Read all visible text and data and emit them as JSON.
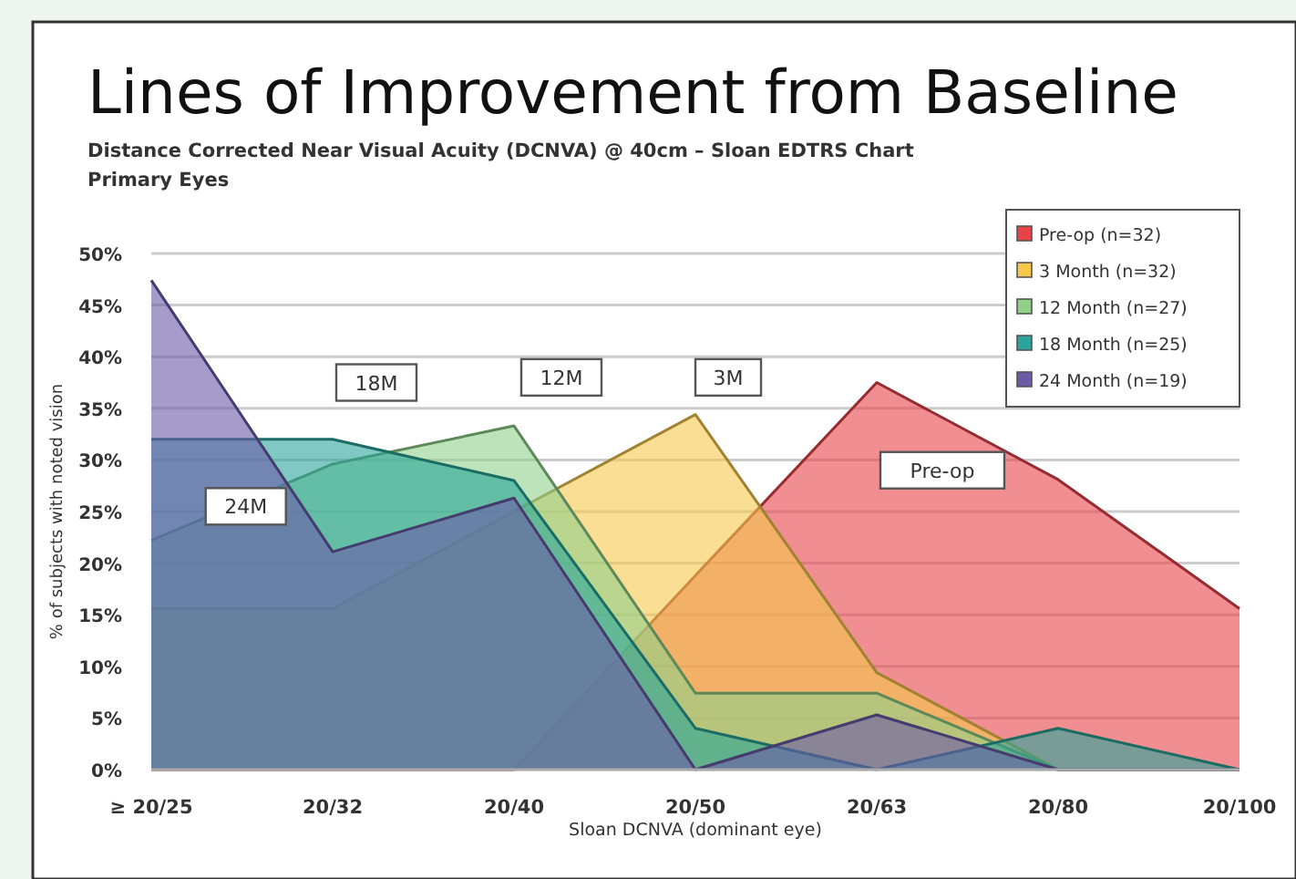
{
  "chart_data": {
    "type": "area",
    "title": "Lines of Improvement from Baseline",
    "subtitle": "Distance Corrected Near Visual Acuity (DCNVA) @ 40cm – Sloan EDTRS Chart\nPrimary Eyes",
    "xlabel": "Sloan DCNVA (dominant eye)",
    "ylabel": "% of subjects with noted vision",
    "categories": [
      "≥ 20/25",
      "20/32",
      "20/40",
      "20/50",
      "20/63",
      "20/80",
      "20/100"
    ],
    "series": [
      {
        "name": "Pre-op (n=32)",
        "color": "#e8434a",
        "values": [
          0,
          0,
          0,
          18.8,
          37.5,
          28.1,
          15.6
        ]
      },
      {
        "name": "3 Month (n=32)",
        "color": "#f5c84c",
        "values": [
          15.6,
          15.6,
          25,
          34.4,
          9.4,
          0,
          0
        ]
      },
      {
        "name": "12 Month (n=27)",
        "color": "#8fd08a",
        "values": [
          22.2,
          29.6,
          33.3,
          7.4,
          7.4,
          0,
          0
        ]
      },
      {
        "name": "18 Month (n=25)",
        "color": "#2aa59a",
        "values": [
          32,
          32,
          28,
          4,
          0,
          4,
          0
        ]
      },
      {
        "name": "24 Month (n=19)",
        "color": "#6a5aa8",
        "values": [
          47.4,
          21.1,
          26.3,
          0,
          5.3,
          0,
          0
        ]
      }
    ],
    "ylim": [
      0,
      50
    ],
    "yticks": [
      {
        "value": 0,
        "label": "0%"
      },
      {
        "value": 5,
        "label": "5%"
      },
      {
        "value": 10,
        "label": "10%"
      },
      {
        "value": 15,
        "label": "15%"
      },
      {
        "value": 20,
        "label": "20%"
      },
      {
        "value": 25,
        "label": "25%"
      },
      {
        "value": 30,
        "label": "30%"
      },
      {
        "value": 35,
        "label": "35%"
      },
      {
        "value": 40,
        "label": "40%"
      },
      {
        "value": 45,
        "label": "45%"
      },
      {
        "value": 50,
        "label": "50%"
      }
    ],
    "grid": "y",
    "legend": "top right",
    "annotations": [
      "18M",
      "12M",
      "3M",
      "24M",
      "Pre-op"
    ]
  }
}
